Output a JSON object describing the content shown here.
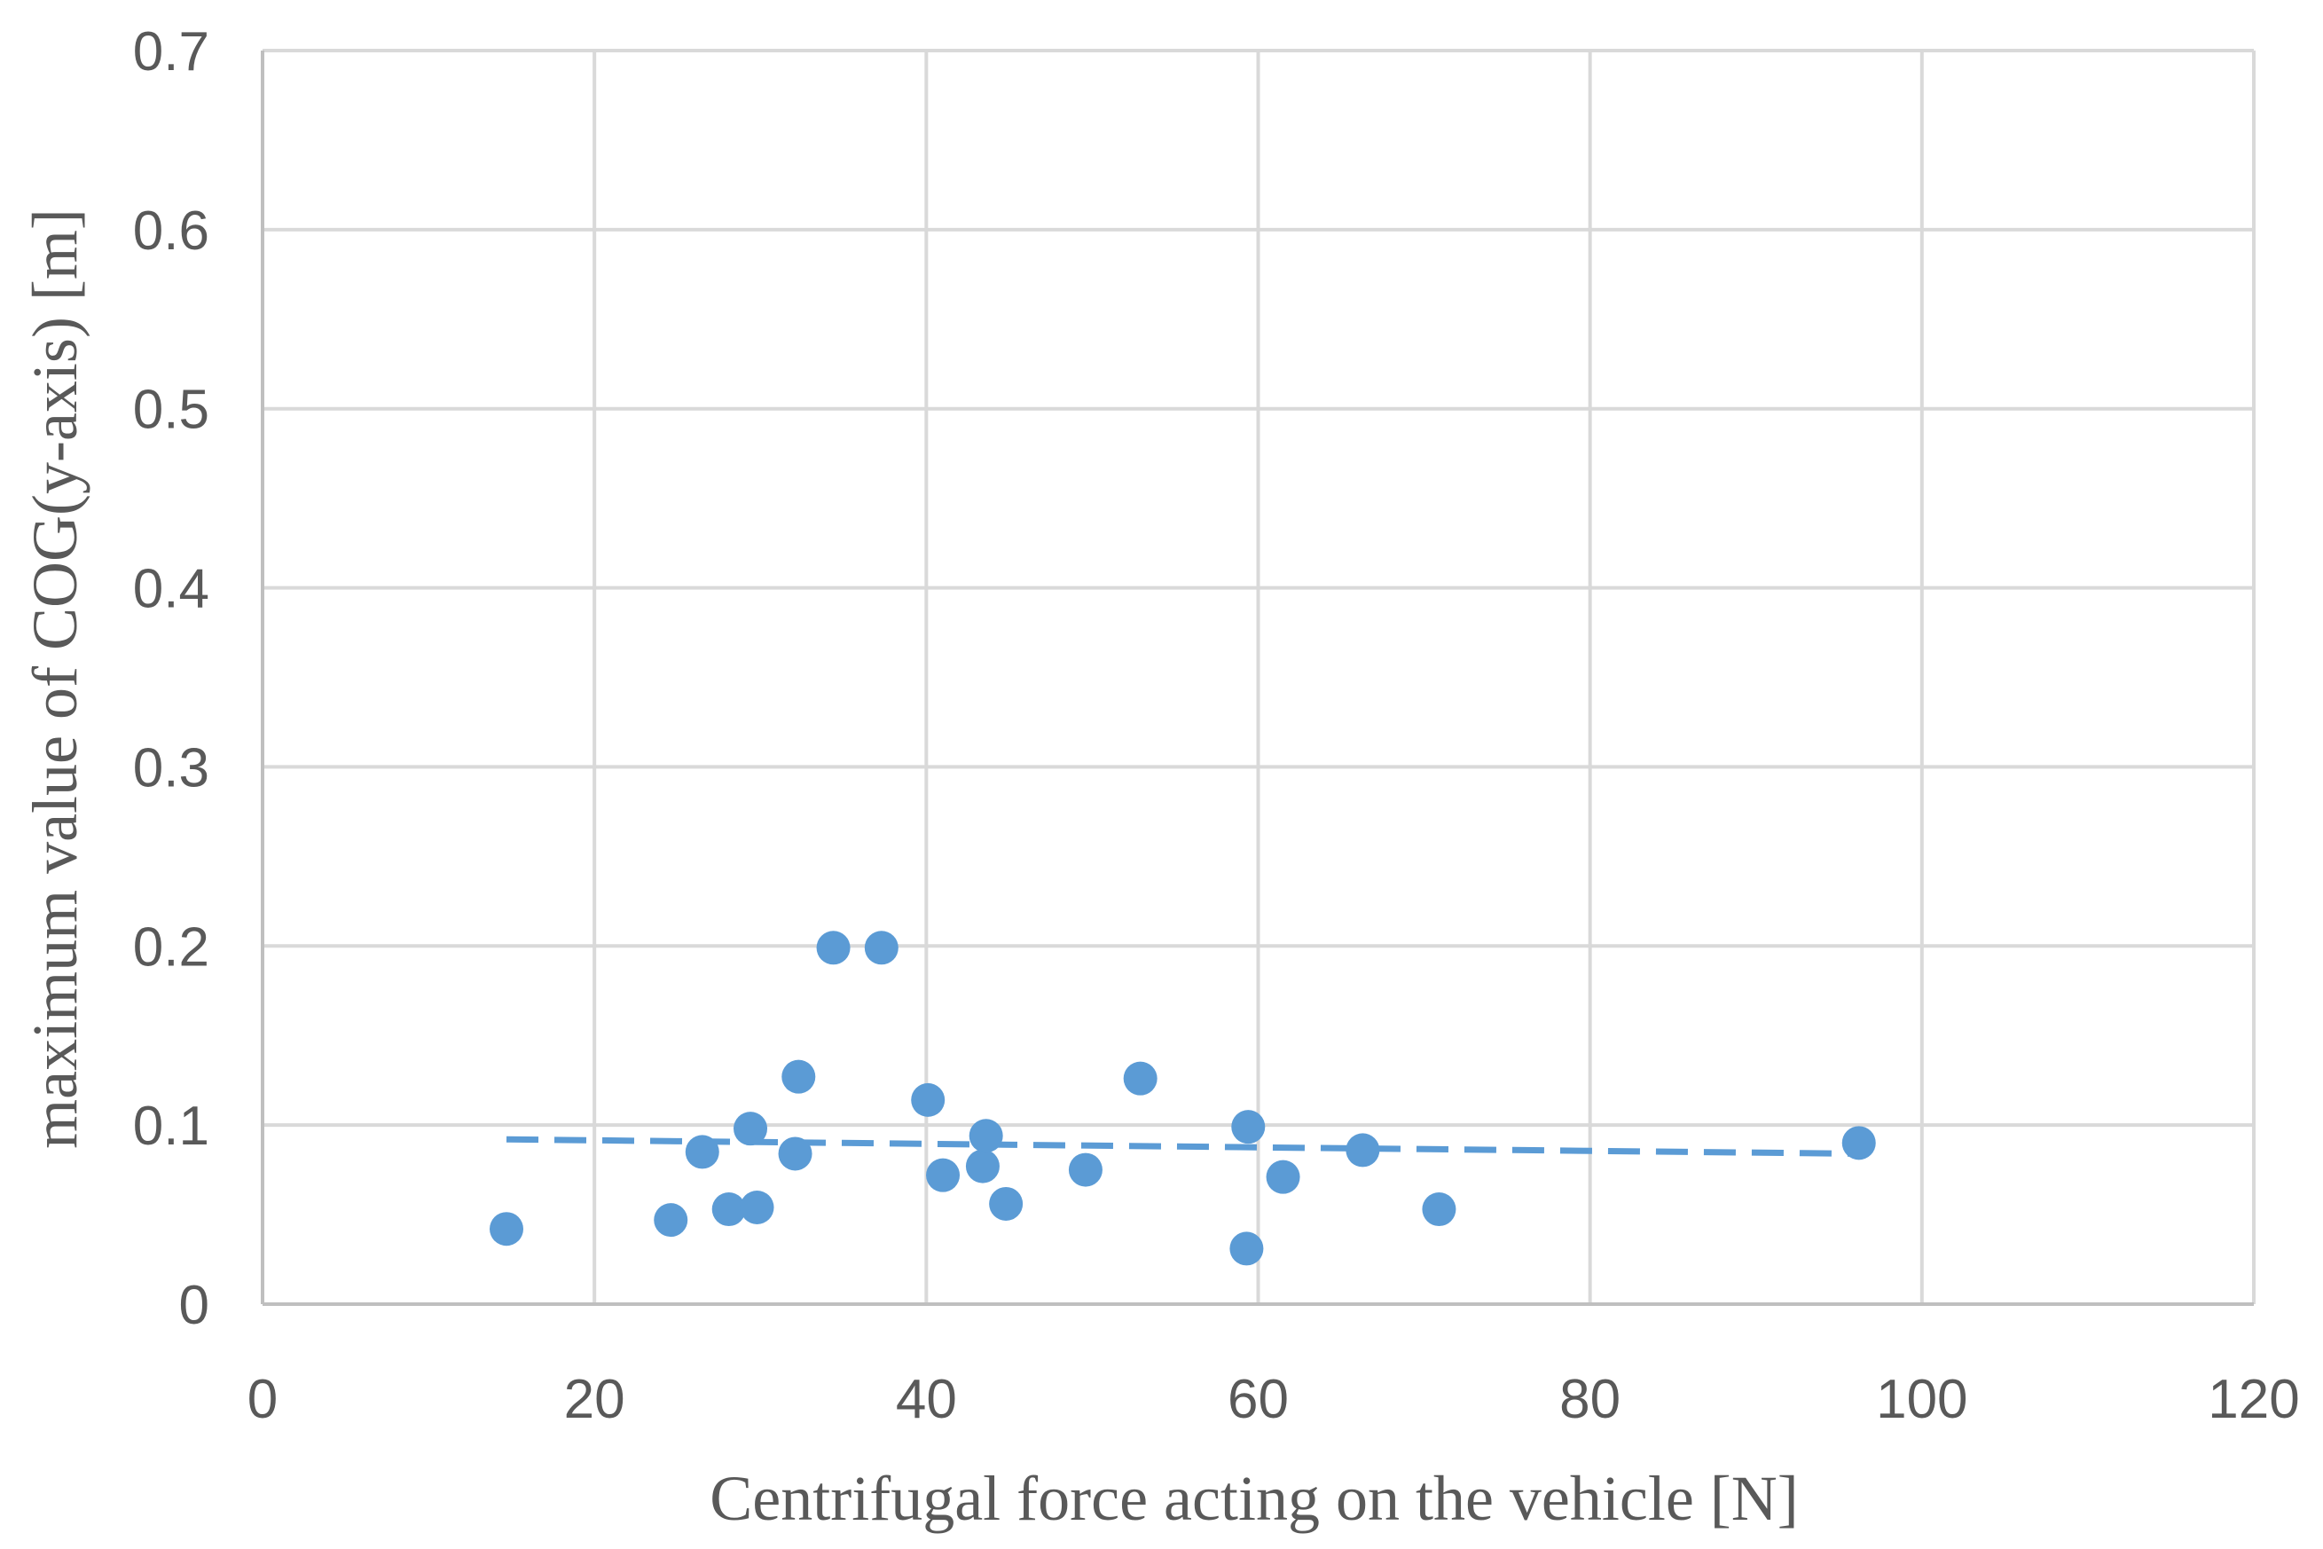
{
  "chart_data": {
    "type": "scatter",
    "title": "",
    "xlabel": "Centrifugal  force  acting  on  the  vehicle  [N]",
    "ylabel": "maximum  value  of  COG(y-axis)  [m]",
    "xlim": [
      0,
      120
    ],
    "ylim": [
      0,
      0.7
    ],
    "xticks": [
      0,
      20,
      40,
      60,
      80,
      100,
      120
    ],
    "yticks": [
      0,
      0.1,
      0.2,
      0.3,
      0.4,
      0.5,
      0.6,
      0.7
    ],
    "xtick_labels": [
      "0",
      "20",
      "40",
      "60",
      "80",
      "100",
      "120"
    ],
    "ytick_labels": [
      "0",
      "0.1",
      "0.2",
      "0.3",
      "0.4",
      "0.5",
      "0.6",
      "0.7"
    ],
    "grid": true,
    "legend": "none",
    "series": [
      {
        "marker_color": "#5b9bd5",
        "points": [
          {
            "x": 14.7,
            "y": 0.042
          },
          {
            "x": 24.6,
            "y": 0.047
          },
          {
            "x": 26.5,
            "y": 0.085
          },
          {
            "x": 28.1,
            "y": 0.053
          },
          {
            "x": 29.4,
            "y": 0.098
          },
          {
            "x": 29.8,
            "y": 0.054
          },
          {
            "x": 32.1,
            "y": 0.084
          },
          {
            "x": 32.3,
            "y": 0.127
          },
          {
            "x": 34.4,
            "y": 0.199
          },
          {
            "x": 37.3,
            "y": 0.199
          },
          {
            "x": 40.1,
            "y": 0.114
          },
          {
            "x": 41.0,
            "y": 0.072
          },
          {
            "x": 43.4,
            "y": 0.077
          },
          {
            "x": 43.6,
            "y": 0.094
          },
          {
            "x": 44.8,
            "y": 0.056
          },
          {
            "x": 49.6,
            "y": 0.075
          },
          {
            "x": 52.9,
            "y": 0.126
          },
          {
            "x": 59.3,
            "y": 0.031
          },
          {
            "x": 59.4,
            "y": 0.099
          },
          {
            "x": 61.5,
            "y": 0.071
          },
          {
            "x": 66.3,
            "y": 0.086
          },
          {
            "x": 70.9,
            "y": 0.053
          },
          {
            "x": 96.2,
            "y": 0.09
          }
        ]
      }
    ],
    "trendline": {
      "style": "dashed",
      "color": "#5b9bd5",
      "x": [
        14.7,
        96.2
      ],
      "y": [
        0.092,
        0.084
      ]
    }
  }
}
